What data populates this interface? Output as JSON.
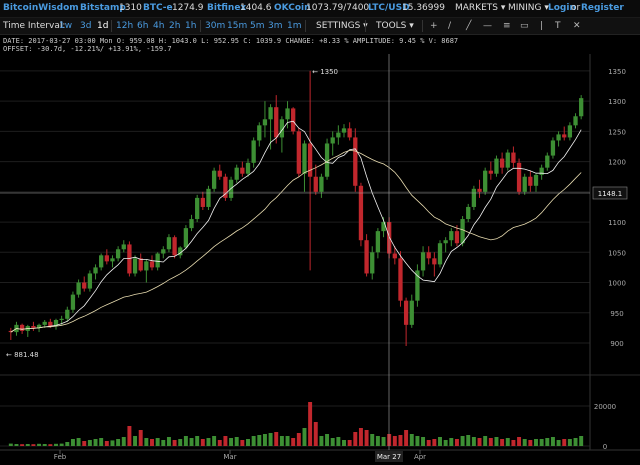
{
  "header": {
    "brand": "BitcoinWisdom",
    "markets": [
      {
        "name": "Bitstamp",
        "price": "1310"
      },
      {
        "name": "BTC-e",
        "price": "1274.9"
      },
      {
        "name": "Bitfinex",
        "price": "1404.6"
      },
      {
        "name": "OKCoin",
        "price": "1073.79/7400"
      },
      {
        "name": "LTC/USD",
        "price": "15.36999"
      }
    ],
    "markets_menu": "MARKETS",
    "mining_menu": "MINING",
    "login": "Login",
    "or": "or",
    "register": "Register"
  },
  "toolbar": {
    "label": "Time Interval:",
    "intervals": [
      "1w",
      "3d",
      "1d",
      "12h",
      "6h",
      "4h",
      "2h",
      "1h",
      "30m",
      "15m",
      "5m",
      "3m",
      "1m"
    ],
    "active_interval": "1d",
    "settings": "SETTINGS",
    "tools": "TOOLS",
    "tool_icons": [
      "crosshair-icon",
      "line-icon",
      "ray-icon",
      "horizontal-line-icon",
      "fibonacci-icon",
      "rectangle-icon",
      "vertical-line-icon",
      "text-tool-icon",
      "eraser-icon"
    ],
    "tool_glyphs": [
      "+",
      "/",
      "╱",
      "—",
      "≡",
      "▭",
      "|",
      "T",
      "✕"
    ]
  },
  "info": {
    "line1": "DATE: 2017-03-27 03:00 Mon   O: 959.08   H: 1043.0   L: 952.95   C: 1039.9   CHANGE: +8.33 %   AMPLITUDE: 9.45 %   V: 8687",
    "line2": "OFFSET: -30.7d, -12.21%/ +13.91%, -159.7"
  },
  "colors": {
    "up": "#3d8f34",
    "down": "#c1272d",
    "ma_fast": "#f2f2f2",
    "ma_slow": "#e8dcb0",
    "grid": "#1e1e1e",
    "crosshair": "#aaaaaa",
    "accent": "#4a9be0"
  },
  "chart_data": {
    "type": "candlestick",
    "price_axis": {
      "ticks": [
        900,
        950,
        1000,
        1050,
        1100,
        1150,
        1200,
        1250,
        1300,
        1350
      ],
      "range": [
        852,
        1378
      ]
    },
    "volume_axis": {
      "ticks": [
        "20000",
        "0"
      ],
      "range": [
        0,
        33000
      ]
    },
    "x_tick_labels": [
      "Feb",
      "Mar",
      "Apr"
    ],
    "crosshair": {
      "date_label": "Mar 27",
      "price_label": "1148.1",
      "price": 1148.1
    },
    "annotations": [
      {
        "label": "1350",
        "price": 1350
      },
      {
        "label": "881.48",
        "price": 881.48
      }
    ],
    "candles": [
      [
        920,
        925,
        905,
        918
      ],
      [
        918,
        935,
        912,
        930
      ],
      [
        930,
        932,
        915,
        920
      ],
      [
        920,
        930,
        910,
        928
      ],
      [
        928,
        935,
        920,
        925
      ],
      [
        925,
        932,
        918,
        930
      ],
      [
        930,
        938,
        925,
        935
      ],
      [
        935,
        940,
        925,
        928
      ],
      [
        928,
        940,
        922,
        938
      ],
      [
        938,
        945,
        930,
        940
      ],
      [
        940,
        960,
        935,
        955
      ],
      [
        955,
        985,
        950,
        980
      ],
      [
        980,
        1005,
        975,
        1000
      ],
      [
        1000,
        1010,
        985,
        990
      ],
      [
        990,
        1020,
        985,
        1015
      ],
      [
        1015,
        1030,
        1005,
        1025
      ],
      [
        1025,
        1048,
        1020,
        1045
      ],
      [
        1045,
        1055,
        1030,
        1035
      ],
      [
        1035,
        1045,
        1025,
        1040
      ],
      [
        1040,
        1060,
        1035,
        1055
      ],
      [
        1055,
        1070,
        1050,
        1063
      ],
      [
        1063,
        1068,
        1010,
        1015
      ],
      [
        1015,
        1045,
        1010,
        1040
      ],
      [
        1040,
        1048,
        1018,
        1020
      ],
      [
        1020,
        1038,
        1000,
        1035
      ],
      [
        1035,
        1045,
        1020,
        1025
      ],
      [
        1025,
        1050,
        1020,
        1048
      ],
      [
        1048,
        1060,
        1040,
        1055
      ],
      [
        1055,
        1080,
        1050,
        1075
      ],
      [
        1075,
        1078,
        1040,
        1045
      ],
      [
        1045,
        1060,
        1040,
        1058
      ],
      [
        1058,
        1095,
        1055,
        1090
      ],
      [
        1090,
        1112,
        1085,
        1105
      ],
      [
        1105,
        1145,
        1100,
        1140
      ],
      [
        1140,
        1150,
        1120,
        1125
      ],
      [
        1125,
        1160,
        1120,
        1155
      ],
      [
        1155,
        1190,
        1150,
        1185
      ],
      [
        1185,
        1195,
        1170,
        1175
      ],
      [
        1175,
        1180,
        1135,
        1140
      ],
      [
        1140,
        1175,
        1135,
        1170
      ],
      [
        1170,
        1195,
        1165,
        1190
      ],
      [
        1190,
        1200,
        1175,
        1180
      ],
      [
        1180,
        1205,
        1175,
        1198
      ],
      [
        1198,
        1240,
        1190,
        1235
      ],
      [
        1235,
        1265,
        1225,
        1260
      ],
      [
        1260,
        1300,
        1240,
        1270
      ],
      [
        1270,
        1295,
        1220,
        1290
      ],
      [
        1290,
        1310,
        1230,
        1240
      ],
      [
        1240,
        1275,
        1215,
        1270
      ],
      [
        1270,
        1300,
        1255,
        1288
      ],
      [
        1288,
        1290,
        1245,
        1250
      ],
      [
        1250,
        1256,
        1175,
        1180
      ],
      [
        1180,
        1235,
        1150,
        1230
      ],
      [
        1230,
        1350,
        1020,
        1175
      ],
      [
        1175,
        1195,
        1145,
        1150
      ],
      [
        1150,
        1180,
        1140,
        1175
      ],
      [
        1175,
        1238,
        1170,
        1230
      ],
      [
        1230,
        1250,
        1210,
        1240
      ],
      [
        1240,
        1260,
        1228,
        1248
      ],
      [
        1248,
        1262,
        1240,
        1255
      ],
      [
        1255,
        1265,
        1235,
        1240
      ],
      [
        1240,
        1255,
        1150,
        1160
      ],
      [
        1160,
        1165,
        1060,
        1070
      ],
      [
        1070,
        1080,
        1010,
        1015
      ],
      [
        1015,
        1060,
        1005,
        1050
      ],
      [
        1050,
        1090,
        1040,
        1085
      ],
      [
        1085,
        1108,
        1075,
        1100
      ],
      [
        1100,
        1108,
        1040,
        1048
      ],
      [
        1048,
        1060,
        1030,
        1040
      ],
      [
        1040,
        1052,
        960,
        970
      ],
      [
        970,
        975,
        895,
        930
      ],
      [
        930,
        980,
        925,
        970
      ],
      [
        970,
        1030,
        960,
        1020
      ],
      [
        1020,
        1060,
        1010,
        1050
      ],
      [
        1050,
        1060,
        1030,
        1040
      ],
      [
        1040,
        1050,
        1010,
        1030
      ],
      [
        1030,
        1070,
        1025,
        1065
      ],
      [
        1065,
        1075,
        1050,
        1070
      ],
      [
        1070,
        1090,
        1060,
        1085
      ],
      [
        1085,
        1095,
        1060,
        1065
      ],
      [
        1065,
        1110,
        1060,
        1105
      ],
      [
        1105,
        1130,
        1100,
        1125
      ],
      [
        1125,
        1160,
        1120,
        1155
      ],
      [
        1155,
        1170,
        1140,
        1150
      ],
      [
        1150,
        1190,
        1145,
        1185
      ],
      [
        1185,
        1200,
        1170,
        1180
      ],
      [
        1180,
        1210,
        1175,
        1205
      ],
      [
        1205,
        1215,
        1180,
        1190
      ],
      [
        1190,
        1220,
        1185,
        1215
      ],
      [
        1215,
        1225,
        1190,
        1198
      ],
      [
        1198,
        1205,
        1145,
        1150
      ],
      [
        1150,
        1180,
        1145,
        1175
      ],
      [
        1175,
        1185,
        1150,
        1160
      ],
      [
        1160,
        1180,
        1150,
        1178
      ],
      [
        1178,
        1195,
        1170,
        1190
      ],
      [
        1190,
        1215,
        1185,
        1210
      ],
      [
        1210,
        1240,
        1205,
        1235
      ],
      [
        1235,
        1250,
        1225,
        1245
      ],
      [
        1245,
        1258,
        1235,
        1240
      ],
      [
        1240,
        1265,
        1235,
        1260
      ],
      [
        1260,
        1280,
        1255,
        1275
      ],
      [
        1275,
        1310,
        1270,
        1305
      ]
    ],
    "volumes": [
      [
        1200,
        1
      ],
      [
        1000,
        1
      ],
      [
        900,
        0
      ],
      [
        1000,
        1
      ],
      [
        900,
        0
      ],
      [
        1100,
        1
      ],
      [
        1000,
        1
      ],
      [
        900,
        0
      ],
      [
        1100,
        1
      ],
      [
        1200,
        1
      ],
      [
        2000,
        1
      ],
      [
        3500,
        1
      ],
      [
        4000,
        1
      ],
      [
        2500,
        0
      ],
      [
        3000,
        1
      ],
      [
        3500,
        1
      ],
      [
        4000,
        1
      ],
      [
        2500,
        0
      ],
      [
        2800,
        1
      ],
      [
        3500,
        1
      ],
      [
        4500,
        1
      ],
      [
        10000,
        0
      ],
      [
        5000,
        1
      ],
      [
        8000,
        0
      ],
      [
        4000,
        1
      ],
      [
        3500,
        0
      ],
      [
        4000,
        1
      ],
      [
        3000,
        1
      ],
      [
        4500,
        1
      ],
      [
        3000,
        0
      ],
      [
        3500,
        1
      ],
      [
        5000,
        1
      ],
      [
        4000,
        1
      ],
      [
        5000,
        1
      ],
      [
        3500,
        0
      ],
      [
        4000,
        1
      ],
      [
        5000,
        1
      ],
      [
        3000,
        0
      ],
      [
        5000,
        0
      ],
      [
        4000,
        1
      ],
      [
        4500,
        1
      ],
      [
        3000,
        0
      ],
      [
        3500,
        1
      ],
      [
        5000,
        1
      ],
      [
        5500,
        1
      ],
      [
        6000,
        1
      ],
      [
        6500,
        1
      ],
      [
        7000,
        0
      ],
      [
        5000,
        1
      ],
      [
        5000,
        1
      ],
      [
        4000,
        0
      ],
      [
        6500,
        0
      ],
      [
        9000,
        1
      ],
      [
        22000,
        0
      ],
      [
        12000,
        0
      ],
      [
        5000,
        1
      ],
      [
        6000,
        1
      ],
      [
        4000,
        1
      ],
      [
        4500,
        1
      ],
      [
        3000,
        1
      ],
      [
        3000,
        0
      ],
      [
        7000,
        0
      ],
      [
        9000,
        0
      ],
      [
        8000,
        0
      ],
      [
        6000,
        1
      ],
      [
        5000,
        1
      ],
      [
        4500,
        1
      ],
      [
        6000,
        0
      ],
      [
        5000,
        0
      ],
      [
        5500,
        0
      ],
      [
        8000,
        0
      ],
      [
        6000,
        1
      ],
      [
        5000,
        1
      ],
      [
        4500,
        1
      ],
      [
        3000,
        0
      ],
      [
        3500,
        0
      ],
      [
        4500,
        1
      ],
      [
        3000,
        1
      ],
      [
        4000,
        1
      ],
      [
        3500,
        0
      ],
      [
        5000,
        1
      ],
      [
        5500,
        1
      ],
      [
        4500,
        1
      ],
      [
        4000,
        0
      ],
      [
        5000,
        1
      ],
      [
        4000,
        0
      ],
      [
        4500,
        1
      ],
      [
        3500,
        0
      ],
      [
        4000,
        1
      ],
      [
        3000,
        0
      ],
      [
        4500,
        0
      ],
      [
        3500,
        1
      ],
      [
        3000,
        0
      ],
      [
        3500,
        1
      ],
      [
        3500,
        1
      ],
      [
        4000,
        1
      ],
      [
        4500,
        1
      ],
      [
        3000,
        1
      ],
      [
        3500,
        0
      ],
      [
        3500,
        1
      ],
      [
        4000,
        1
      ],
      [
        5000,
        1
      ]
    ]
  }
}
